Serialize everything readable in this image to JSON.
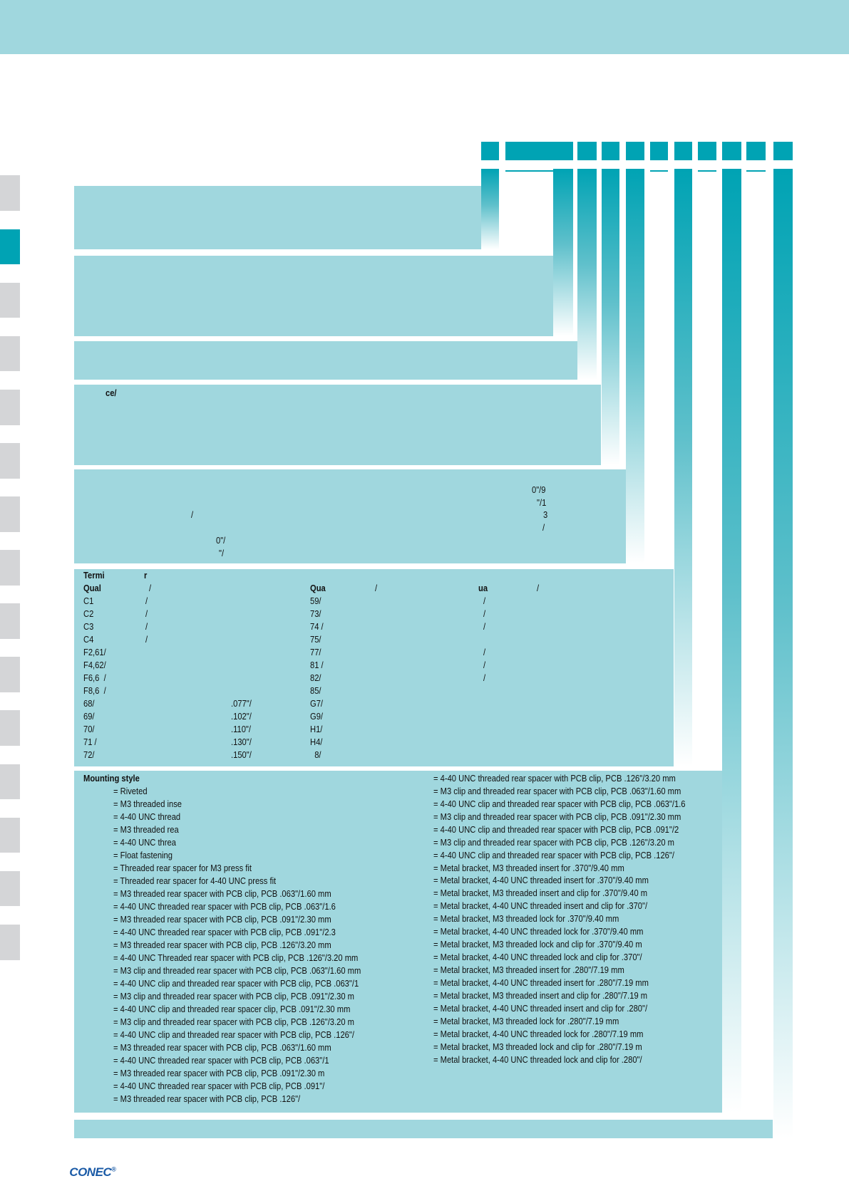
{
  "panel4": {
    "text": "ce/"
  },
  "panel5": {
    "fragments": [
      "0\"/9",
      "\"/1",
      "3",
      "/",
      "/",
      "0\"/",
      "\"/"
    ]
  },
  "terminal": {
    "heading": [
      "Termi",
      "r"
    ],
    "header": [
      "Qual",
      "/",
      "Qua",
      "/",
      "ua",
      "/"
    ],
    "rows": [
      [
        "C1",
        "/",
        null,
        "59/",
        "/"
      ],
      [
        "C2",
        "/",
        null,
        "73/",
        "/"
      ],
      [
        "C3",
        "/",
        null,
        "74 /",
        "/"
      ],
      [
        "C4",
        "/",
        null,
        "75/",
        null
      ],
      [
        "F2,61/",
        null,
        null,
        "77/",
        "/"
      ],
      [
        "F4,62/",
        null,
        null,
        "81 /",
        "/"
      ],
      [
        "F6,6  /",
        null,
        null,
        "82/",
        "/"
      ],
      [
        "F8,6  /",
        null,
        null,
        "85/",
        null
      ],
      [
        "68/",
        null,
        ".077\"/",
        "G7/",
        null
      ],
      [
        "69/",
        null,
        ".102\"/",
        "G9/",
        null
      ],
      [
        "70/",
        null,
        ".110\"/",
        "H1/",
        null
      ],
      [
        "71 /",
        null,
        ".130\"/",
        "H4/",
        null
      ],
      [
        "72/",
        null,
        ".150\"/",
        "  8/",
        null
      ]
    ]
  },
  "mounting": {
    "title": "Mounting style",
    "left": [
      "= Riveted",
      "= M3 threaded inse",
      "= 4-40 UNC thread",
      "= M3 threaded rea",
      "= 4-40 UNC threa",
      "= Float fastening",
      "= Threaded rear spacer for M3 press fit",
      "= Threaded rear spacer for 4-40 UNC press fit",
      "= M3 threaded rear spacer with PCB clip, PCB .063\"/1.60 mm",
      "= 4-40 UNC threaded rear spacer with PCB clip, PCB .063\"/1.6",
      "= M3 threaded rear spacer with PCB clip, PCB .091\"/2.30 mm",
      "= 4-40 UNC threaded rear spacer with PCB clip, PCB .091\"/2.3",
      "= M3 threaded rear spacer with PCB clip, PCB .126\"/3.20 mm",
      "= 4-40 UNC Threaded rear spacer with PCB clip, PCB .126\"/3.20 mm",
      "= M3 clip and threaded rear spacer with PCB clip, PCB .063\"/1.60 mm",
      "= 4-40 UNC clip and threaded rear spacer with PCB clip, PCB .063\"/1",
      "= M3 clip and threaded rear spacer with PCB clip, PCB .091\"/2.30 m",
      "= 4-40 UNC clip and threaded rear spacer clip, PCB .091\"/2.30 mm",
      "= M3 clip and threaded rear spacer with PCB clip, PCB .126\"/3.20 m",
      "= 4-40 UNC clip and threaded rear spacer with PCB clip, PCB .126\"/",
      "= M3 threaded rear spacer with PCB clip, PCB .063\"/1.60 mm",
      "= 4-40 UNC threaded rear spacer with PCB clip, PCB .063\"/1",
      "= M3 threaded rear spacer with PCB clip, PCB .091\"/2.30 m",
      "= 4-40 UNC threaded rear spacer with PCB clip, PCB .091\"/",
      "= M3 threaded rear spacer with PCB clip, PCB .126\"/"
    ],
    "right": [
      "= 4-40 UNC threaded rear spacer with PCB clip, PCB .126\"/3.20 mm",
      "= M3 clip and threaded rear spacer with PCB clip, PCB .063\"/1.60 mm",
      "= 4-40 UNC clip and threaded rear spacer with PCB clip, PCB .063\"/1.6",
      "= M3 clip and threaded rear spacer with PCB clip, PCB .091\"/2.30 mm",
      "= 4-40 UNC clip and threaded rear spacer with PCB clip, PCB .091\"/2",
      "= M3 clip and threaded rear spacer with PCB clip, PCB .126\"/3.20 m",
      "= 4-40 UNC clip and threaded rear spacer with PCB clip, PCB .126\"/",
      "= Metal bracket, M3 threaded insert for .370\"/9.40 mm",
      "= Metal bracket, 4-40 UNC threaded insert for .370\"/9.40 mm",
      "= Metal bracket, M3 threaded insert and clip for .370\"/9.40 m",
      "= Metal bracket, 4-40 UNC threaded insert and clip for .370\"/",
      "= Metal bracket, M3 threaded lock for .370\"/9.40 mm",
      "= Metal bracket, 4-40 UNC threaded lock for .370\"/9.40 mm",
      "= Metal bracket, M3 threaded lock and clip for .370\"/9.40 m",
      "= Metal bracket, 4-40 UNC threaded lock and clip for .370\"/",
      "= Metal bracket, M3 threaded insert for .280\"/7.19 mm",
      "= Metal bracket, 4-40 UNC threaded insert for .280\"/7.19 mm",
      "= Metal bracket, M3 threaded insert and clip for .280\"/7.19 m",
      "= Metal bracket, 4-40 UNC threaded insert and clip for .280\"/",
      "= Metal bracket, M3 threaded lock for .280\"/7.19 mm",
      "= Metal bracket, 4-40 UNC threaded lock for .280\"/7.19 mm",
      "= Metal bracket, M3 threaded lock and clip for .280\"/7.19 m",
      "= Metal bracket, 4-40 UNC threaded lock and clip for .280\"/"
    ]
  },
  "footer": {
    "logo": "CONEC",
    "logo_mark": "®"
  }
}
